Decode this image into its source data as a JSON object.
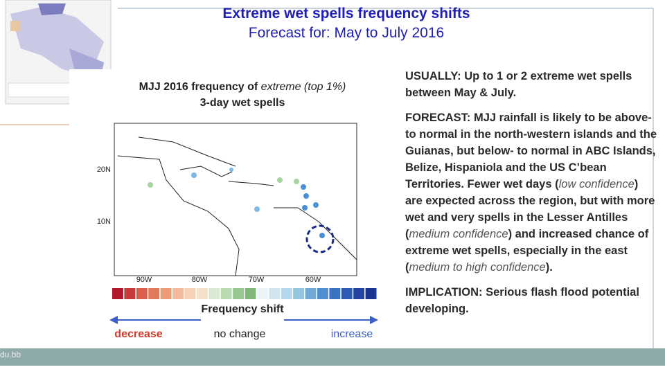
{
  "header": {
    "title": "Extreme wet spells frequency shifts",
    "subtitle": "Forecast for: May to July 2016"
  },
  "figure": {
    "caption": [
      "MJJ 2016 frequency of ",
      "extreme (top 1%)",
      "3-day wet spells"
    ],
    "lat_labels": [
      "20N",
      "10N"
    ],
    "lon_labels": [
      "90W",
      "80W",
      "70W",
      "60W"
    ],
    "colorbar_title": "Frequency shift",
    "arrow_labels": [
      "decrease",
      "no change",
      "increase"
    ]
  },
  "text": {
    "usually": "USUALLY: Up to 1 or 2 extreme wet spells between May & July.",
    "forecast": [
      "FORECAST: MJJ rainfall is likely to be above- to normal in the north-western islands and the Guianas, but below- to normal in ABC Islands, Belize, Hispaniola and the US C’bean Territories. Fewer wet days (",
      "low confidence",
      ") are expected across the region, but with more wet and very spells in the Lesser Antilles (",
      "medium confidence",
      ") and increased chance of extreme wet spells, especially in the east (",
      "medium to high confidence",
      ")."
    ],
    "implication": "IMPLICATION: Serious flash flood potential developing."
  },
  "footer": {
    "fragment": "du.bb"
  }
}
